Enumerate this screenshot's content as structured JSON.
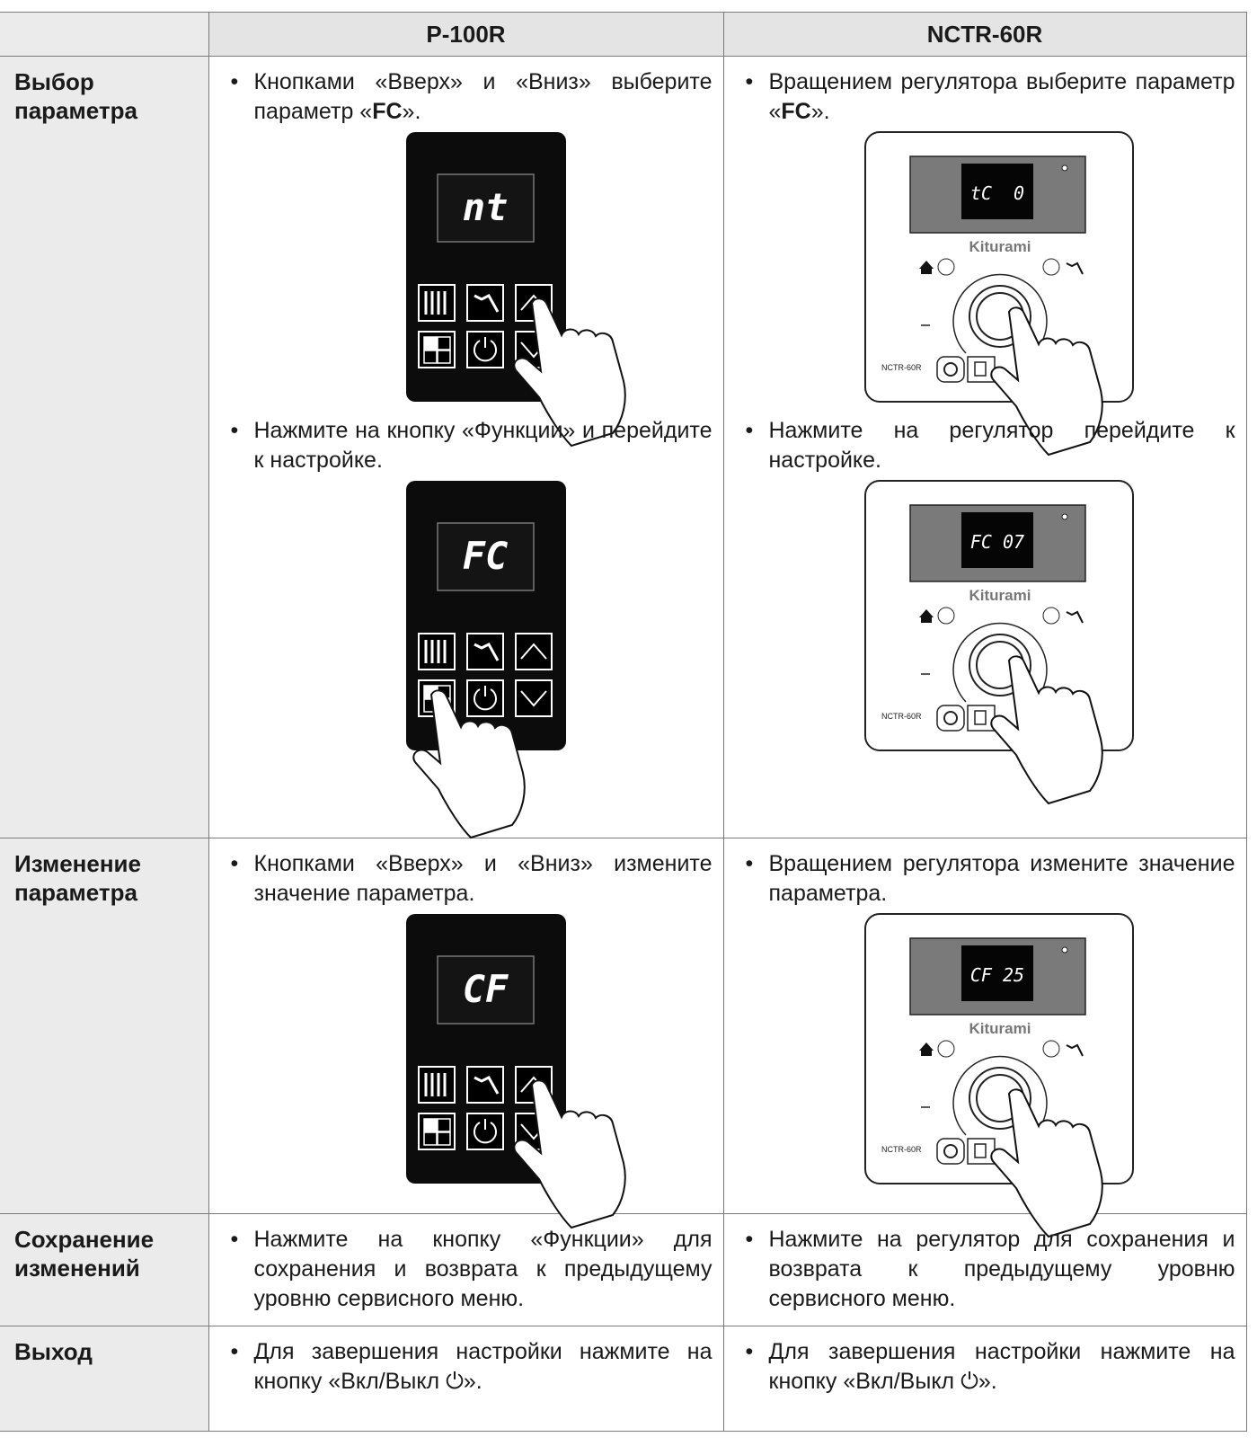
{
  "table": {
    "headers": [
      "P-100R",
      "NCTR-60R"
    ],
    "brand": "Kiturami",
    "model": "NCTR-60R",
    "rows": [
      {
        "label": "Выбор параметра",
        "left": [
          {
            "text": [
              "Кнопками «Вверх» и «Вниз» выберите параметр «",
              "FC",
              "»."
            ],
            "display": "nt"
          },
          {
            "text": [
              "Нажмите на кнопку «Функции» и перейдите к настройке."
            ],
            "display": "FC"
          }
        ],
        "right": [
          {
            "text": [
              "Вращением регулятора выберите параметр «",
              "FC",
              "»."
            ],
            "display": "tC  0"
          },
          {
            "text": [
              "Нажмите на регулятор перейдите к настройке."
            ],
            "display": "FC 07"
          }
        ]
      },
      {
        "label": "Изменение параметра",
        "left": [
          {
            "text": [
              "Кнопками «Вверх» и «Вниз» измените значение параметра."
            ],
            "display": "CF"
          }
        ],
        "right": [
          {
            "text": [
              "Вращением регулятора измените значение параметра."
            ],
            "display": "CF 25"
          }
        ]
      },
      {
        "label": "Сохранение изменений",
        "left": [
          {
            "text": [
              "Нажмите на кнопку «Функции» для сохранения и возврата к предыдущему уровню сервисного меню."
            ]
          }
        ],
        "right": [
          {
            "text": [
              "Нажмите на регулятор для сохранения и возврата к предыдущему уровню сервисного меню."
            ]
          }
        ]
      },
      {
        "label": "Выход",
        "left": [
          {
            "text": [
              "Для завершения настройки нажмите на кнопку «Вкл/Выкл ⏻»."
            ]
          }
        ],
        "right": [
          {
            "text": [
              "Для завершения настройки нажмите на кнопку «Вкл/Выкл ⏻»."
            ]
          }
        ]
      }
    ]
  }
}
